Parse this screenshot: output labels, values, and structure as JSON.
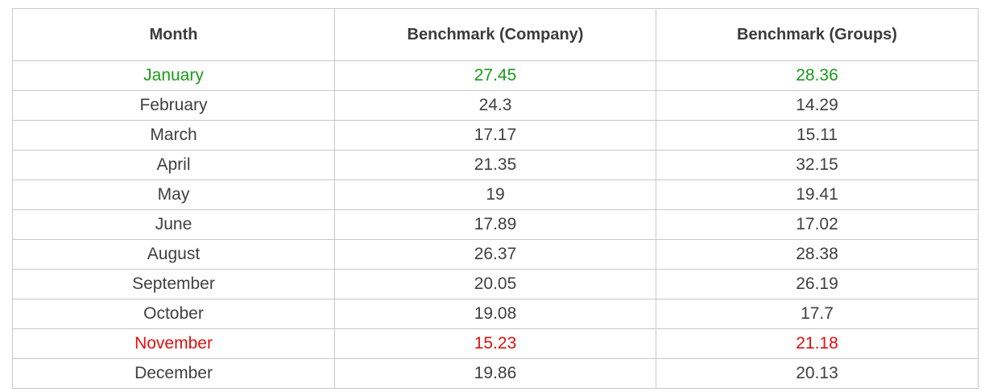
{
  "table": {
    "headers": [
      "Month",
      "Benchmark (Company)",
      "Benchmark (Groups)"
    ],
    "rows": [
      {
        "month": "January",
        "company": "27.45",
        "groups": "28.36",
        "highlight": "green"
      },
      {
        "month": "February",
        "company": "24.3",
        "groups": "14.29",
        "highlight": ""
      },
      {
        "month": "March",
        "company": "17.17",
        "groups": "15.11",
        "highlight": ""
      },
      {
        "month": "April",
        "company": "21.35",
        "groups": "32.15",
        "highlight": ""
      },
      {
        "month": "May",
        "company": "19",
        "groups": "19.41",
        "highlight": ""
      },
      {
        "month": "June",
        "company": "17.89",
        "groups": "17.02",
        "highlight": ""
      },
      {
        "month": "August",
        "company": "26.37",
        "groups": "28.38",
        "highlight": ""
      },
      {
        "month": "September",
        "company": "20.05",
        "groups": "26.19",
        "highlight": ""
      },
      {
        "month": "October",
        "company": "19.08",
        "groups": "17.7",
        "highlight": ""
      },
      {
        "month": "November",
        "company": "15.23",
        "groups": "21.18",
        "highlight": "red"
      },
      {
        "month": "December",
        "company": "19.86",
        "groups": "20.13",
        "highlight": ""
      }
    ]
  },
  "colors": {
    "highlight_green": "#1a9a1a",
    "highlight_red": "#e01010",
    "text": "#404040",
    "border": "#c8c8c8"
  }
}
